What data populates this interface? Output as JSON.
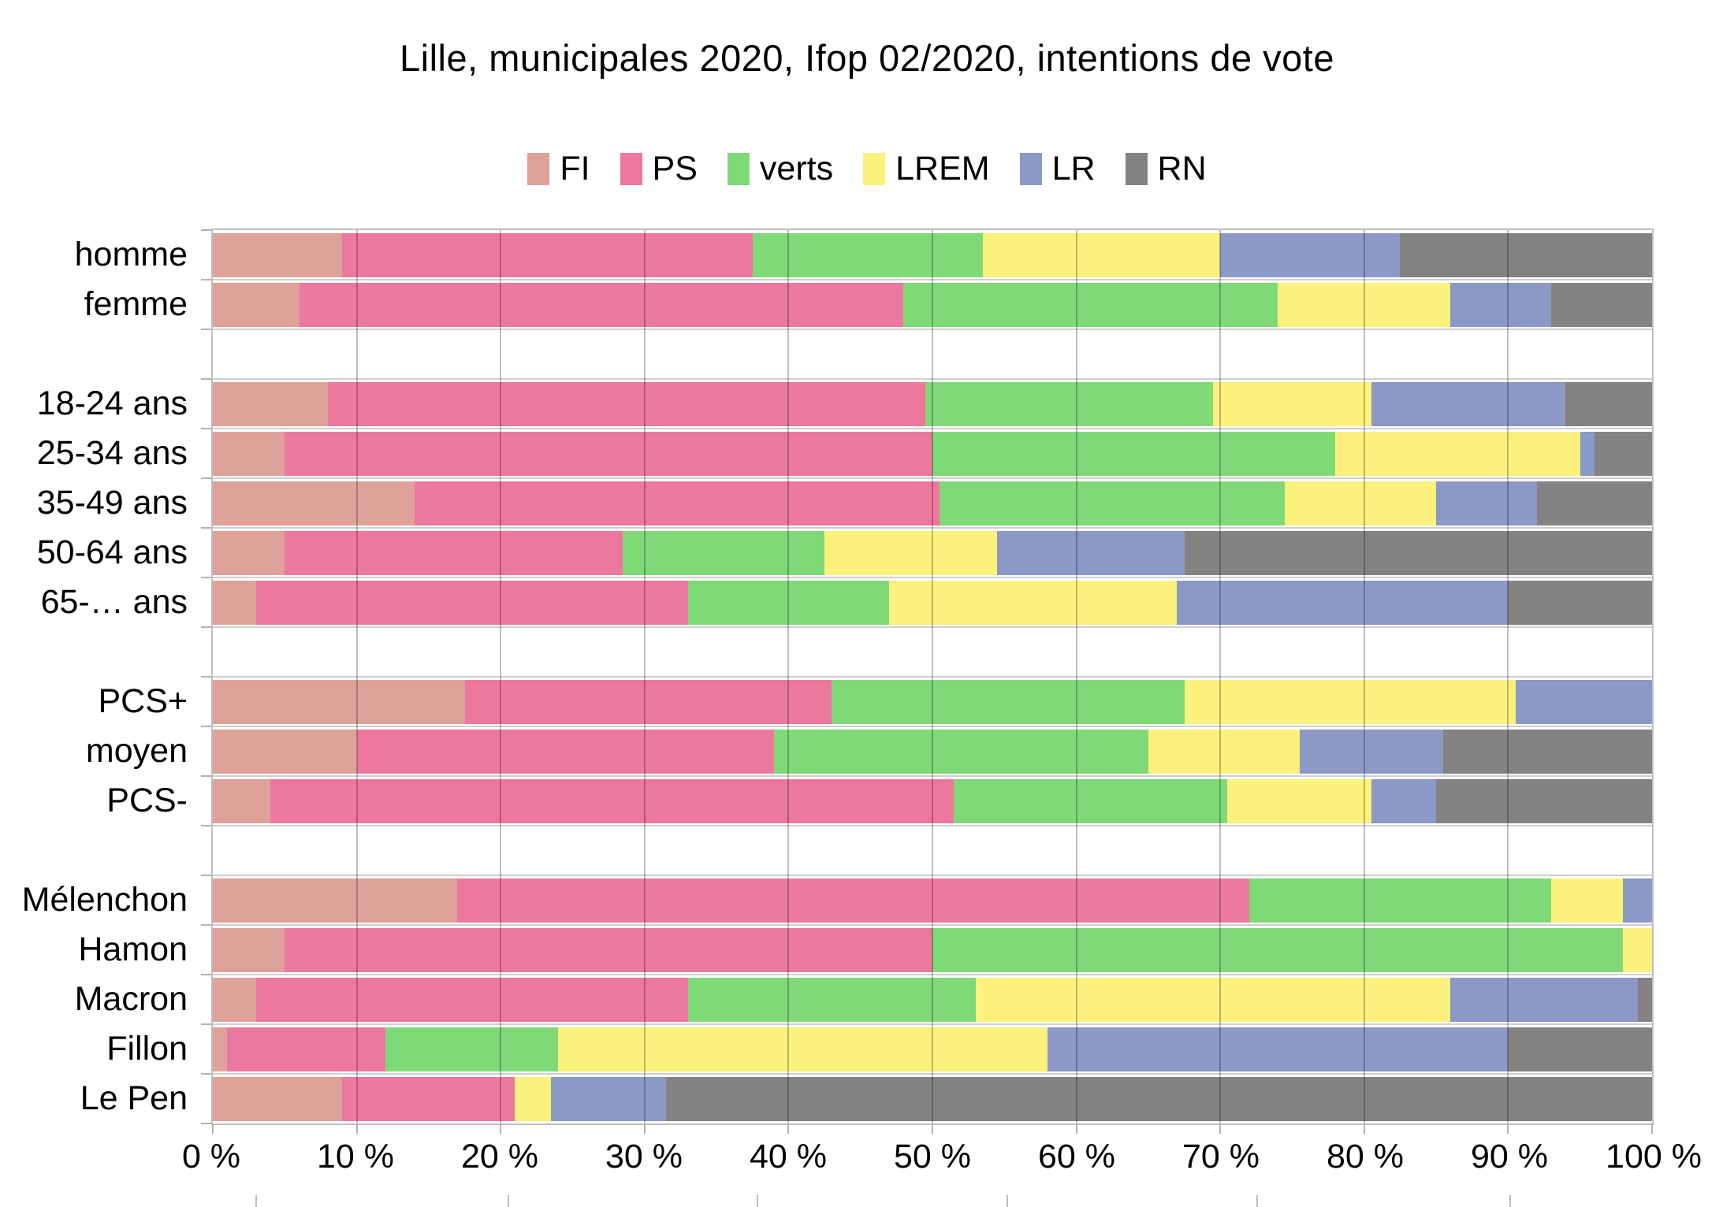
{
  "chart_data": {
    "type": "bar",
    "variant": "horizontal-stacked",
    "title": "Lille, municipales 2020, Ifop 02/2020, intentions de vote",
    "unit": "%",
    "xlim": [
      0,
      100
    ],
    "grid": "vertical-major-10",
    "legend_position": "top",
    "x_ticks": [
      "0 %",
      "10 %",
      "20 %",
      "30 %",
      "40 %",
      "50 %",
      "60 %",
      "70 %",
      "80 %",
      "90 %",
      "100 %"
    ],
    "series": [
      "FI",
      "PS",
      "verts",
      "LREM",
      "LR",
      "RN"
    ],
    "series_colors": {
      "FI": "#DFA29A",
      "PS": "#EC789E",
      "verts": "#80D977",
      "LREM": "#FBF17D",
      "LR": "#8C99C7",
      "RN": "#838383"
    },
    "groups": [
      {
        "name": "genre",
        "rows": [
          {
            "label": "homme",
            "values": [
              9,
              28.5,
              16,
              16.5,
              12.5,
              17.5
            ]
          },
          {
            "label": "femme",
            "values": [
              6,
              42,
              26,
              12,
              7,
              7
            ]
          }
        ]
      },
      {
        "name": "age",
        "rows": [
          {
            "label": "18-24 ans",
            "values": [
              8,
              41.5,
              20,
              11,
              13.5,
              6
            ]
          },
          {
            "label": "25-34 ans",
            "values": [
              5,
              45,
              28,
              17,
              1,
              4
            ]
          },
          {
            "label": "35-49 ans",
            "values": [
              14,
              36.5,
              24,
              10.5,
              7,
              8
            ]
          },
          {
            "label": "50-64 ans",
            "values": [
              5,
              23.5,
              14,
              12,
              13,
              32.5
            ]
          },
          {
            "label": "65-… ans",
            "values": [
              3,
              30,
              14,
              20,
              23,
              10
            ]
          }
        ]
      },
      {
        "name": "pcs",
        "rows": [
          {
            "label": "PCS+",
            "values": [
              17.5,
              25.5,
              24.5,
              23,
              9.5,
              0
            ]
          },
          {
            "label": "moyen",
            "values": [
              10,
              29,
              26,
              10.5,
              10,
              14.5
            ]
          },
          {
            "label": "PCS-",
            "values": [
              4,
              47.5,
              19,
              10,
              4.5,
              15
            ]
          }
        ]
      },
      {
        "name": "vote-2017",
        "rows": [
          {
            "label": "Mélenchon",
            "values": [
              17,
              55,
              21,
              5,
              2,
              0
            ]
          },
          {
            "label": "Hamon",
            "values": [
              5,
              45,
              48,
              2,
              0,
              0
            ]
          },
          {
            "label": "Macron",
            "values": [
              3,
              30,
              20,
              33,
              13,
              1
            ]
          },
          {
            "label": "Fillon",
            "values": [
              1,
              11,
              12,
              34,
              32,
              10
            ]
          },
          {
            "label": "Le Pen",
            "values": [
              9,
              12,
              0,
              2.5,
              8,
              68.5
            ]
          }
        ]
      }
    ]
  }
}
